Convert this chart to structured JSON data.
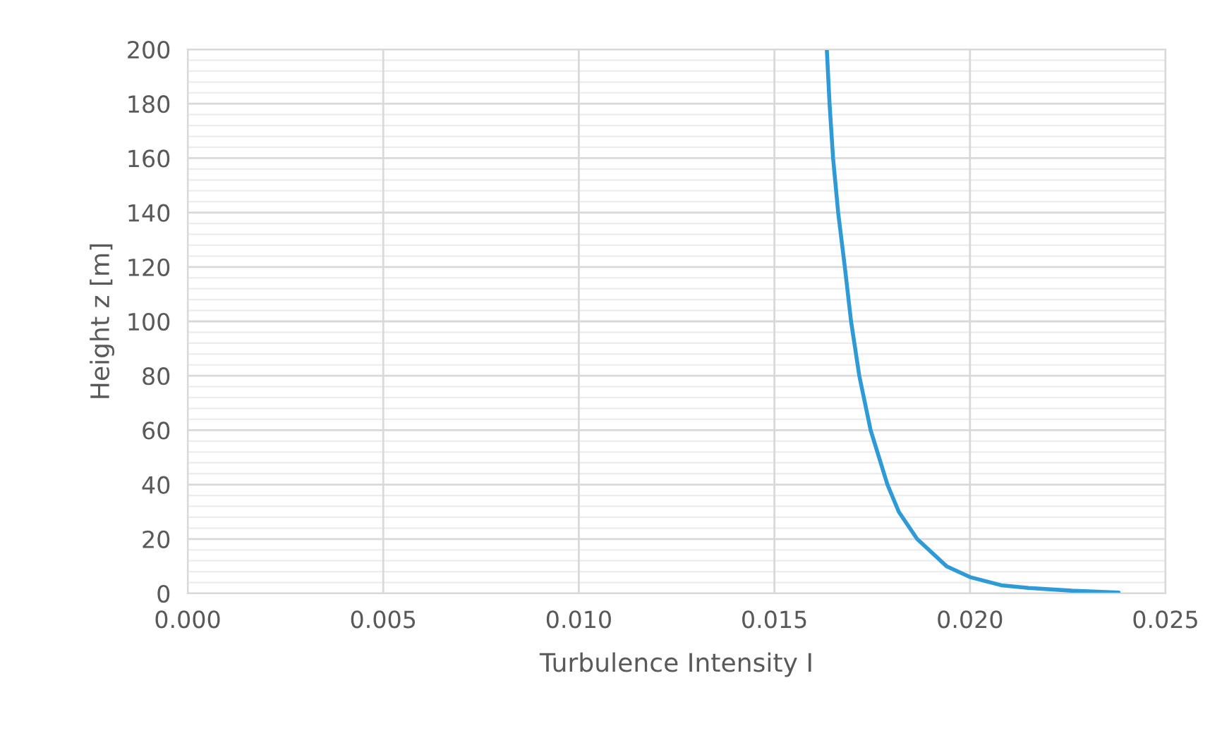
{
  "chart_data": {
    "type": "line",
    "xlabel": "Turbulence Intensity I",
    "ylabel": "Height z [m]",
    "series": [
      {
        "color": "#2e9ad8",
        "x": [
          0.0238,
          0.0226,
          0.0215,
          0.0208,
          0.02,
          0.0194,
          0.01865,
          0.01818,
          0.01789,
          0.01746,
          0.01717,
          0.01696,
          0.0168,
          0.01663,
          0.0165,
          0.01641,
          0.01634
        ],
        "values": [
          0.3,
          1,
          2,
          3,
          6,
          10,
          20,
          30,
          40,
          60,
          80,
          100,
          120,
          140,
          160,
          180,
          200
        ]
      }
    ],
    "xlim": [
      0,
      0.025
    ],
    "xticks": [
      {
        "value": 0,
        "label": "0.000"
      },
      {
        "value": 0.005,
        "label": "0.005"
      },
      {
        "value": 0.01,
        "label": "0.010"
      },
      {
        "value": 0.015,
        "label": "0.015"
      },
      {
        "value": 0.02,
        "label": "0.020"
      },
      {
        "value": 0.025,
        "label": "0.025"
      }
    ],
    "ylim": [
      0,
      200
    ],
    "yticks": [
      0,
      20,
      40,
      60,
      80,
      100,
      120,
      140,
      160,
      180,
      200
    ],
    "grid": true
  }
}
